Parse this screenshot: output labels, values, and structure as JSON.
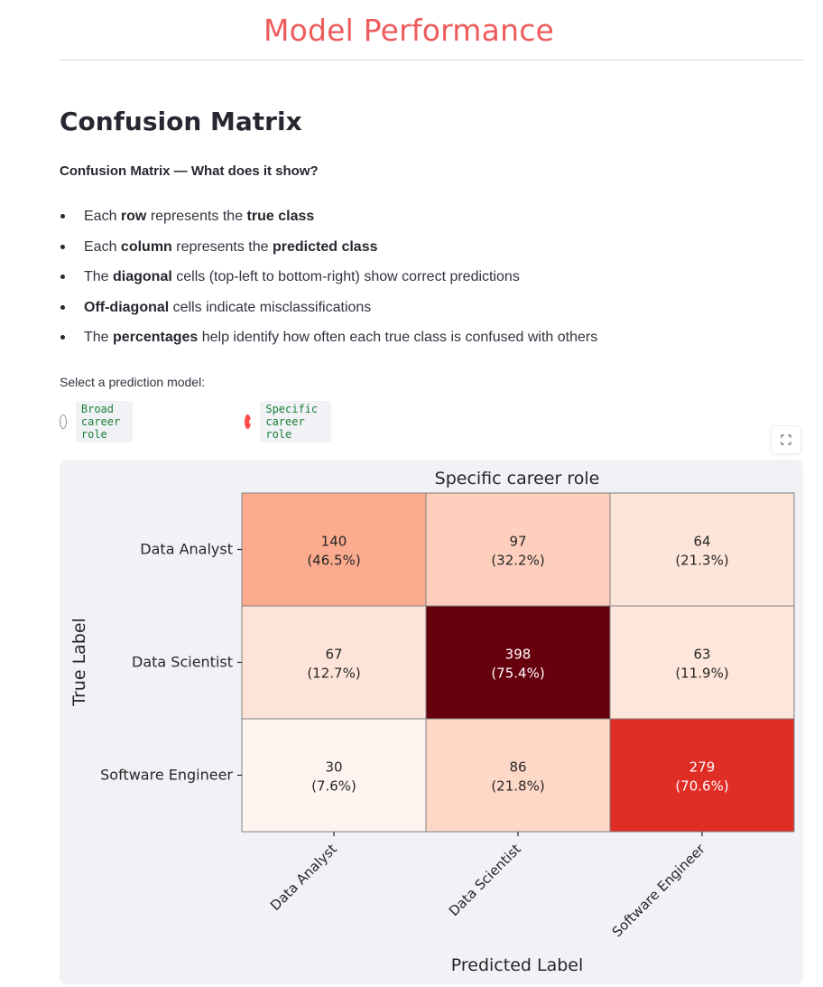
{
  "page": {
    "title": "Model Performance"
  },
  "section": {
    "heading": "Confusion Matrix",
    "subheading": "Confusion Matrix — What does it show?",
    "bullets": [
      {
        "parts": [
          {
            "t": "Each "
          },
          {
            "t": "row",
            "b": true
          },
          {
            "t": " represents the "
          },
          {
            "t": "true class",
            "b": true
          }
        ]
      },
      {
        "parts": [
          {
            "t": "Each "
          },
          {
            "t": "column",
            "b": true
          },
          {
            "t": " represents the "
          },
          {
            "t": "predicted class",
            "b": true
          }
        ]
      },
      {
        "parts": [
          {
            "t": "The "
          },
          {
            "t": "diagonal",
            "b": true
          },
          {
            "t": " cells (top-left to bottom-right) show correct predictions"
          }
        ]
      },
      {
        "parts": [
          {
            "t": "Off-diagonal",
            "b": true
          },
          {
            "t": " cells indicate misclassifications"
          }
        ]
      },
      {
        "parts": [
          {
            "t": "The "
          },
          {
            "t": "percentages",
            "b": true
          },
          {
            "t": " help identify how often each true class is confused with others"
          }
        ]
      }
    ]
  },
  "model_select": {
    "label": "Select a prediction model:",
    "options": [
      {
        "label": "Broad career role",
        "selected": false
      },
      {
        "label": "Specific career role",
        "selected": true
      }
    ]
  },
  "expand_icon": "fullscreen-expand-icon",
  "chart_data": {
    "type": "heatmap",
    "title": "Specific career role",
    "xlabel": "Predicted Label",
    "ylabel": "True Label",
    "x_categories": [
      "Data Analyst",
      "Data Scientist",
      "Software Engineer"
    ],
    "y_categories": [
      "Data Analyst",
      "Data Scientist",
      "Software Engineer"
    ],
    "counts": [
      [
        140,
        97,
        64
      ],
      [
        67,
        398,
        63
      ],
      [
        30,
        86,
        279
      ]
    ],
    "percent_labels": [
      [
        "(46.5%)",
        "(32.2%)",
        "(21.3%)"
      ],
      [
        "(12.7%)",
        "(75.4%)",
        "(11.9%)"
      ],
      [
        "(7.6%)",
        "(21.8%)",
        "(70.6%)"
      ]
    ],
    "colormap": "Reds",
    "colors": {
      "low": "#fff5f0",
      "high": "#67000d",
      "card_bg": "#f0f2f6"
    }
  }
}
